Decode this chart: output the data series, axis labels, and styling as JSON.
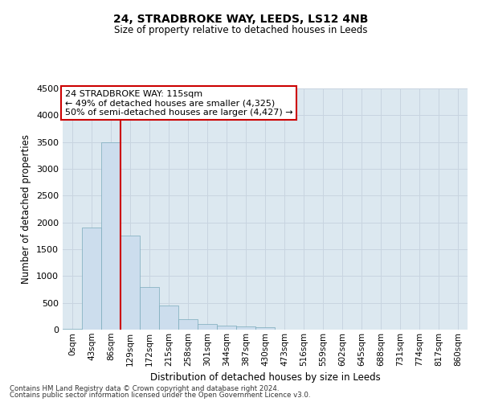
{
  "title1": "24, STRADBROKE WAY, LEEDS, LS12 4NB",
  "title2": "Size of property relative to detached houses in Leeds",
  "xlabel": "Distribution of detached houses by size in Leeds",
  "ylabel": "Number of detached properties",
  "bar_color": "#ccdded",
  "bar_edge_color": "#7aaabb",
  "categories": [
    "0sqm",
    "43sqm",
    "86sqm",
    "129sqm",
    "172sqm",
    "215sqm",
    "258sqm",
    "301sqm",
    "344sqm",
    "387sqm",
    "430sqm",
    "473sqm",
    "516sqm",
    "559sqm",
    "602sqm",
    "645sqm",
    "688sqm",
    "731sqm",
    "774sqm",
    "817sqm",
    "860sqm"
  ],
  "values": [
    20,
    1900,
    3500,
    1750,
    800,
    450,
    200,
    105,
    80,
    65,
    50,
    0,
    0,
    0,
    0,
    0,
    0,
    0,
    0,
    0,
    0
  ],
  "ylim": [
    0,
    4500
  ],
  "yticks": [
    0,
    500,
    1000,
    1500,
    2000,
    2500,
    3000,
    3500,
    4000,
    4500
  ],
  "vline_color": "#cc0000",
  "vline_xindex": 2,
  "annotation_text": "24 STRADBROKE WAY: 115sqm\n← 49% of detached houses are smaller (4,325)\n50% of semi-detached houses are larger (4,427) →",
  "annotation_box_color": "#ffffff",
  "annotation_box_edge_color": "#cc0000",
  "footer1": "Contains HM Land Registry data © Crown copyright and database right 2024.",
  "footer2": "Contains public sector information licensed under the Open Government Licence v3.0.",
  "grid_color": "#c8d4e0",
  "background_color": "#dce8f0"
}
